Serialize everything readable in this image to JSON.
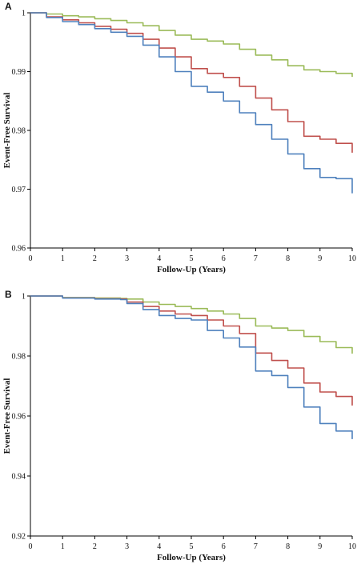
{
  "chart_data": [
    {
      "type": "line",
      "panel_label": "A",
      "xlabel": "Follow-Up (Years)",
      "ylabel": "Event-Free Survival",
      "xlim": [
        0,
        10
      ],
      "ylim": [
        0.96,
        1
      ],
      "xticks": [
        0,
        1,
        2,
        3,
        4,
        5,
        6,
        7,
        8,
        9,
        10
      ],
      "yticks": [
        0.96,
        0.97,
        0.98,
        0.99,
        1
      ],
      "ytick_labels": [
        "0.96",
        "0.97",
        "0.98",
        "0.99",
        "1"
      ],
      "grid": false,
      "legend": "none",
      "series": [
        {
          "color": "#9bbb59",
          "points": [
            [
              0,
              1.0
            ],
            [
              0.5,
              0.9998
            ],
            [
              1,
              0.9995
            ],
            [
              1.5,
              0.9993
            ],
            [
              2,
              0.999
            ],
            [
              2.5,
              0.9987
            ],
            [
              3,
              0.9983
            ],
            [
              3.5,
              0.9978
            ],
            [
              4,
              0.997
            ],
            [
              4.5,
              0.9962
            ],
            [
              5,
              0.9955
            ],
            [
              5.5,
              0.9952
            ],
            [
              6,
              0.9947
            ],
            [
              6.5,
              0.9938
            ],
            [
              7,
              0.9928
            ],
            [
              7.5,
              0.992
            ],
            [
              8,
              0.991
            ],
            [
              8.5,
              0.9903
            ],
            [
              9,
              0.99
            ],
            [
              9.5,
              0.9897
            ],
            [
              10,
              0.9891
            ]
          ]
        },
        {
          "color": "#c0504d",
          "points": [
            [
              0,
              1.0
            ],
            [
              0.5,
              0.9993
            ],
            [
              1,
              0.9988
            ],
            [
              1.5,
              0.9983
            ],
            [
              2,
              0.9977
            ],
            [
              2.5,
              0.9972
            ],
            [
              3,
              0.9965
            ],
            [
              3.5,
              0.9955
            ],
            [
              4,
              0.994
            ],
            [
              4.5,
              0.9925
            ],
            [
              5,
              0.9905
            ],
            [
              5.5,
              0.9897
            ],
            [
              6,
              0.989
            ],
            [
              6.5,
              0.9875
            ],
            [
              7,
              0.9855
            ],
            [
              7.5,
              0.9835
            ],
            [
              8,
              0.9815
            ],
            [
              8.5,
              0.979
            ],
            [
              9,
              0.9785
            ],
            [
              9.5,
              0.9778
            ],
            [
              10,
              0.9762
            ]
          ]
        },
        {
          "color": "#4f81bd",
          "points": [
            [
              0,
              1.0
            ],
            [
              0.5,
              0.9992
            ],
            [
              1,
              0.9985
            ],
            [
              1.5,
              0.998
            ],
            [
              2,
              0.9973
            ],
            [
              2.5,
              0.9967
            ],
            [
              3,
              0.996
            ],
            [
              3.5,
              0.9945
            ],
            [
              4,
              0.9925
            ],
            [
              4.5,
              0.99
            ],
            [
              5,
              0.9875
            ],
            [
              5.5,
              0.9865
            ],
            [
              6,
              0.985
            ],
            [
              6.5,
              0.983
            ],
            [
              7,
              0.981
            ],
            [
              7.5,
              0.9785
            ],
            [
              8,
              0.976
            ],
            [
              8.5,
              0.9735
            ],
            [
              9,
              0.972
            ],
            [
              9.5,
              0.9718
            ],
            [
              10,
              0.9693
            ]
          ]
        }
      ]
    },
    {
      "type": "line",
      "panel_label": "B",
      "xlabel": "Follow-Up (Years)",
      "ylabel": "Event-Free Survival",
      "xlim": [
        0,
        10
      ],
      "ylim": [
        0.92,
        1
      ],
      "xticks": [
        0,
        1,
        2,
        3,
        4,
        5,
        6,
        7,
        8,
        9,
        10
      ],
      "yticks": [
        0.92,
        0.94,
        0.96,
        0.98,
        1
      ],
      "ytick_labels": [
        "0.92",
        "0.94",
        "0.96",
        "0.98",
        "1"
      ],
      "grid": false,
      "legend": "none",
      "series": [
        {
          "color": "#9bbb59",
          "points": [
            [
              0,
              1.0
            ],
            [
              1,
              0.9995
            ],
            [
              2,
              0.9993
            ],
            [
              2.8,
              0.9992
            ],
            [
              3,
              0.999
            ],
            [
              3.5,
              0.998
            ],
            [
              4,
              0.9972
            ],
            [
              4.5,
              0.9965
            ],
            [
              5,
              0.9958
            ],
            [
              5.5,
              0.995
            ],
            [
              6,
              0.994
            ],
            [
              6.5,
              0.9925
            ],
            [
              7,
              0.99
            ],
            [
              7.5,
              0.9893
            ],
            [
              8,
              0.9885
            ],
            [
              8.5,
              0.9865
            ],
            [
              9,
              0.9848
            ],
            [
              9.5,
              0.9828
            ],
            [
              10,
              0.9808
            ]
          ]
        },
        {
          "color": "#c0504d",
          "points": [
            [
              0,
              1.0
            ],
            [
              1,
              0.9994
            ],
            [
              2,
              0.9991
            ],
            [
              2.8,
              0.999
            ],
            [
              3,
              0.998
            ],
            [
              3.5,
              0.9965
            ],
            [
              4,
              0.995
            ],
            [
              4.5,
              0.994
            ],
            [
              5,
              0.9935
            ],
            [
              5.5,
              0.992
            ],
            [
              6,
              0.99
            ],
            [
              6.5,
              0.9875
            ],
            [
              7,
              0.981
            ],
            [
              7.5,
              0.9785
            ],
            [
              8,
              0.976
            ],
            [
              8.5,
              0.971
            ],
            [
              9,
              0.968
            ],
            [
              9.5,
              0.9665
            ],
            [
              10,
              0.9635
            ]
          ]
        },
        {
          "color": "#4f81bd",
          "points": [
            [
              0,
              1.0
            ],
            [
              1,
              0.9993
            ],
            [
              2,
              0.999
            ],
            [
              2.8,
              0.9988
            ],
            [
              3,
              0.9975
            ],
            [
              3.5,
              0.9955
            ],
            [
              4,
              0.9935
            ],
            [
              4.5,
              0.9925
            ],
            [
              5,
              0.992
            ],
            [
              5.5,
              0.9885
            ],
            [
              6,
              0.986
            ],
            [
              6.5,
              0.983
            ],
            [
              7,
              0.975
            ],
            [
              7.5,
              0.9735
            ],
            [
              8,
              0.9695
            ],
            [
              8.5,
              0.963
            ],
            [
              9,
              0.9575
            ],
            [
              9.5,
              0.955
            ],
            [
              10,
              0.9523
            ]
          ]
        }
      ]
    }
  ]
}
